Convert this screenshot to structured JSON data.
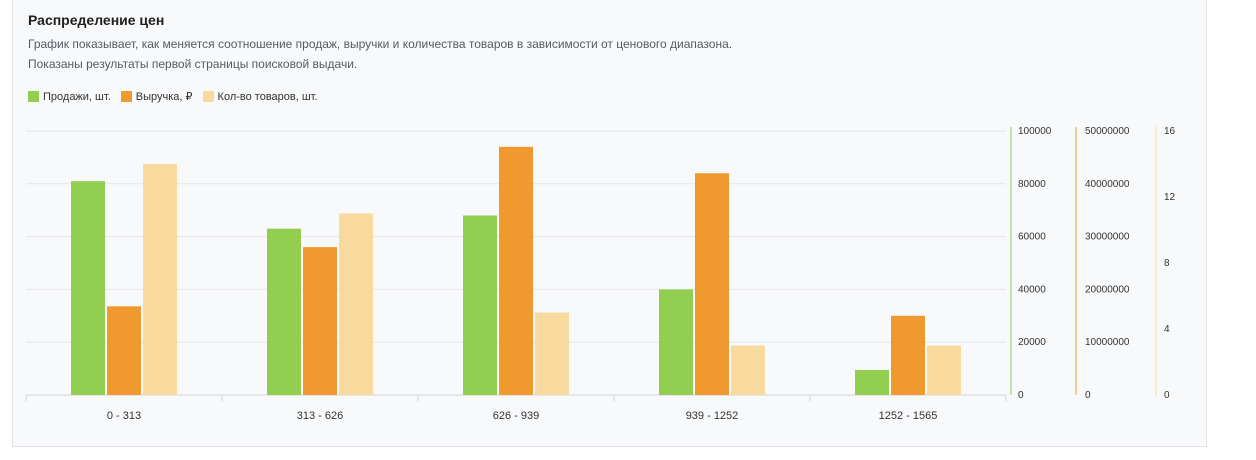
{
  "header": {
    "title": "Распределение цен",
    "description_line1": "График показывает, как меняется соотношение продаж, выручки и количества товаров в зависимости от ценового диапазона.",
    "description_line2": "Показаны результаты первой страницы поисковой выдачи."
  },
  "colors": {
    "sales": "#92cf50",
    "revenue": "#f0992e",
    "count": "#f8d99e",
    "grid": "#e3e5e8",
    "axis": "#cfd3d8"
  },
  "chart_data": {
    "type": "bar",
    "title": "",
    "categories": [
      "0 - 313",
      "313 - 626",
      "626 - 939",
      "939 - 1252",
      "1252 - 1565"
    ],
    "series": [
      {
        "name": "Продажи, шт.",
        "key": "sales",
        "axis": "y1",
        "values": [
          81000,
          63000,
          68000,
          40000,
          9500
        ]
      },
      {
        "name": "Выручка, ₽",
        "key": "revenue",
        "axis": "y2",
        "values": [
          16800000,
          28000000,
          47000000,
          42000000,
          15000000
        ]
      },
      {
        "name": "Кол-во товаров, шт.",
        "key": "count",
        "axis": "y3",
        "values": [
          14,
          11,
          5,
          3,
          3
        ]
      }
    ],
    "axes": {
      "y1": {
        "min": 0,
        "max": 100000,
        "ticks": [
          "0",
          "20000",
          "40000",
          "60000",
          "80000",
          "100000"
        ]
      },
      "y2": {
        "min": 0,
        "max": 50000000,
        "ticks": [
          "0",
          "10000000",
          "20000000",
          "30000000",
          "40000000",
          "50000000"
        ]
      },
      "y3": {
        "min": 0,
        "max": 16,
        "ticks": [
          "0",
          "4",
          "8",
          "12",
          "16"
        ]
      }
    },
    "legend": "top-left",
    "grid": true
  }
}
